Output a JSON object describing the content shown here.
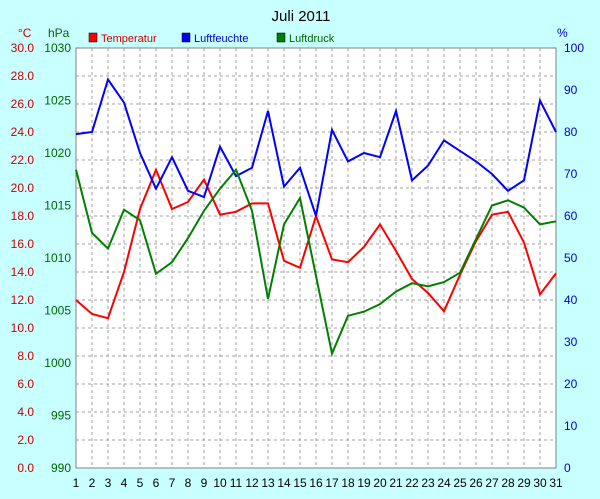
{
  "chart_data": {
    "type": "line",
    "title": "Juli 2011",
    "unit_labels": {
      "temperature": "°C",
      "pressure": "hPa",
      "humidity": "%"
    },
    "x": [
      1,
      2,
      3,
      4,
      5,
      6,
      7,
      8,
      9,
      10,
      11,
      12,
      13,
      14,
      15,
      16,
      17,
      18,
      19,
      20,
      21,
      22,
      23,
      24,
      25,
      26,
      27,
      28,
      29,
      30,
      31
    ],
    "x_ticks": [
      "1",
      "2",
      "3",
      "4",
      "5",
      "6",
      "7",
      "8",
      "9",
      "10",
      "11",
      "12",
      "13",
      "14",
      "15",
      "16",
      "17",
      "18",
      "19",
      "20",
      "21",
      "22",
      "23",
      "24",
      "25",
      "26",
      "27",
      "28",
      "29",
      "30",
      "31"
    ],
    "axes": {
      "temperature": {
        "range": [
          0,
          30
        ],
        "ticks": [
          "0.0",
          "2.0",
          "4.0",
          "6.0",
          "8.0",
          "10.0",
          "12.0",
          "14.0",
          "16.0",
          "18.0",
          "20.0",
          "22.0",
          "24.0",
          "26.0",
          "28.0",
          "30.0"
        ],
        "color": "#cc0000"
      },
      "pressure": {
        "range": [
          990,
          1030
        ],
        "ticks": [
          "990",
          "995",
          "1000",
          "1005",
          "1010",
          "1015",
          "1020",
          "1025",
          "1030"
        ],
        "color": "#006600"
      },
      "humidity": {
        "range": [
          0,
          100
        ],
        "ticks": [
          "0",
          "10",
          "20",
          "30",
          "40",
          "50",
          "60",
          "70",
          "80",
          "90",
          "100"
        ],
        "color": "#0000cc"
      }
    },
    "grid": true,
    "legend_position": "top",
    "series": [
      {
        "name": "Temperatur",
        "axis": "temperature",
        "color": "#ff0000",
        "values": [
          12.0,
          11.0,
          10.7,
          14.0,
          18.5,
          21.3,
          18.5,
          19.0,
          20.6,
          18.1,
          18.3,
          18.9,
          18.9,
          14.8,
          14.3,
          18.0,
          14.9,
          14.7,
          15.8,
          17.4,
          15.5,
          13.5,
          12.5,
          11.2,
          13.8,
          16.2,
          18.1,
          18.3,
          16.1,
          12.4,
          13.9
        ]
      },
      {
        "name": "Luftfeuchte",
        "axis": "humidity",
        "color": "#0000ff",
        "values": [
          79.5,
          80.0,
          92.5,
          87.0,
          75.0,
          66.5,
          74.0,
          66.0,
          64.5,
          76.5,
          69.5,
          71.5,
          85.0,
          67.0,
          71.5,
          60.0,
          80.5,
          73.0,
          75.0,
          74.0,
          85.0,
          68.5,
          72.0,
          78.0,
          75.5,
          73.0,
          70.0,
          66.0,
          68.5,
          87.5,
          80.0
        ]
      },
      {
        "name": "Luftdruck",
        "axis": "pressure",
        "color": "#008000",
        "values": [
          1018.4,
          1012.4,
          1010.9,
          1014.6,
          1013.6,
          1008.5,
          1009.6,
          1011.9,
          1014.5,
          1016.6,
          1018.4,
          1014.5,
          1006.1,
          1013.2,
          1015.7,
          1008.3,
          1000.9,
          1004.5,
          1004.9,
          1005.6,
          1006.8,
          1007.6,
          1007.3,
          1007.7,
          1008.6,
          1011.8,
          1015.0,
          1015.5,
          1014.8,
          1013.2,
          1013.5
        ]
      }
    ]
  }
}
